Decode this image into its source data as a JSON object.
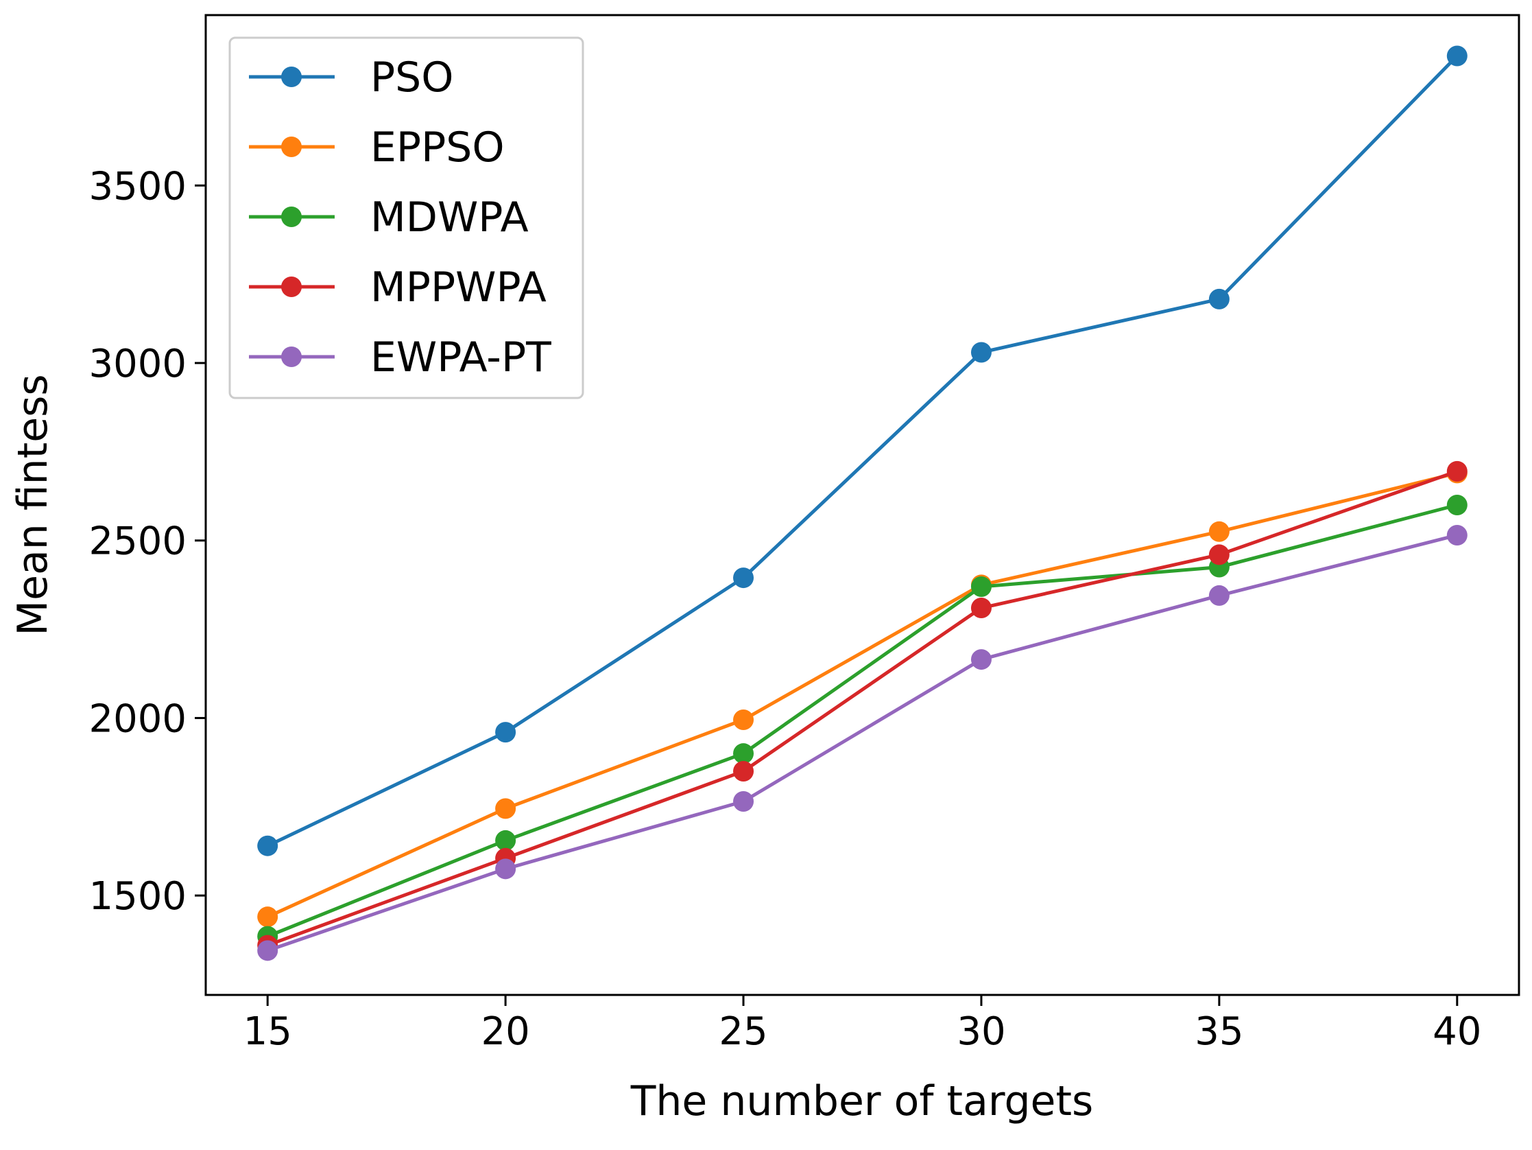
{
  "chart_data": {
    "type": "line",
    "title": "",
    "xlabel": "The number of targets",
    "ylabel": "Mean fintess",
    "x": [
      15,
      20,
      25,
      30,
      35,
      40
    ],
    "xticks": [
      "15",
      "20",
      "25",
      "30",
      "35",
      "40"
    ],
    "yticks": [
      "1500",
      "2000",
      "2500",
      "3000",
      "3500"
    ],
    "ytick_values": [
      1500,
      2000,
      2500,
      3000,
      3500
    ],
    "xlim": [
      13.7,
      41.3
    ],
    "ylim": [
      1220,
      3980
    ],
    "grid": false,
    "legend_position": "top-left",
    "series": [
      {
        "name": "PSO",
        "color": "#1f77b4",
        "values": [
          1640,
          1960,
          2395,
          3030,
          3180,
          3865
        ]
      },
      {
        "name": "EPPSO",
        "color": "#ff7f0e",
        "values": [
          1440,
          1745,
          1995,
          2375,
          2525,
          2690
        ]
      },
      {
        "name": "MDWPA",
        "color": "#2ca02c",
        "values": [
          1385,
          1655,
          1900,
          2370,
          2425,
          2600
        ]
      },
      {
        "name": "MPPWPA",
        "color": "#d62728",
        "values": [
          1360,
          1605,
          1850,
          2310,
          2460,
          2695
        ]
      },
      {
        "name": "EWPA-PT",
        "color": "#9467bd",
        "values": [
          1345,
          1575,
          1765,
          2165,
          2345,
          2515
        ]
      }
    ]
  }
}
